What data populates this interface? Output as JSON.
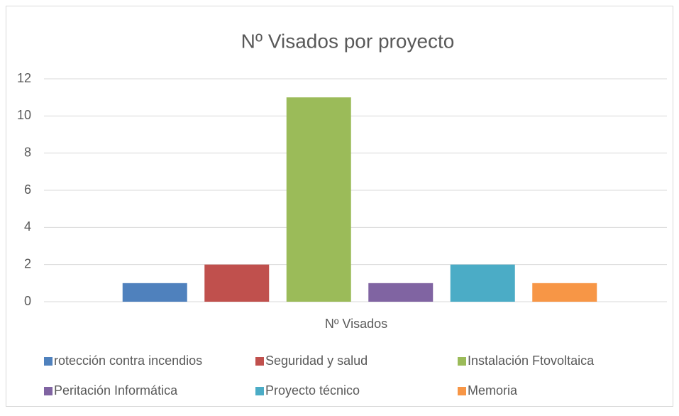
{
  "chart_data": {
    "type": "bar",
    "title": "Nº Visados por proyecto",
    "categories": [
      "Nº Visados"
    ],
    "series": [
      {
        "name": "rotección contra incendios",
        "color": "#4f81bd",
        "values": [
          1
        ]
      },
      {
        "name": "Seguridad y salud",
        "color": "#c0504d",
        "values": [
          2
        ]
      },
      {
        "name": "Instalación Ftovoltaica",
        "color": "#9bbb59",
        "values": [
          11
        ]
      },
      {
        "name": "Peritación Informática",
        "color": "#8064a2",
        "values": [
          1
        ]
      },
      {
        "name": "Proyecto técnico",
        "color": "#4bacc6",
        "values": [
          2
        ]
      },
      {
        "name": "Memoria",
        "color": "#f79646",
        "values": [
          1
        ]
      }
    ],
    "ylim": [
      0,
      12
    ],
    "yticks": [
      0,
      2,
      4,
      6,
      8,
      10,
      12
    ],
    "grid": true,
    "legend": "bottom"
  }
}
